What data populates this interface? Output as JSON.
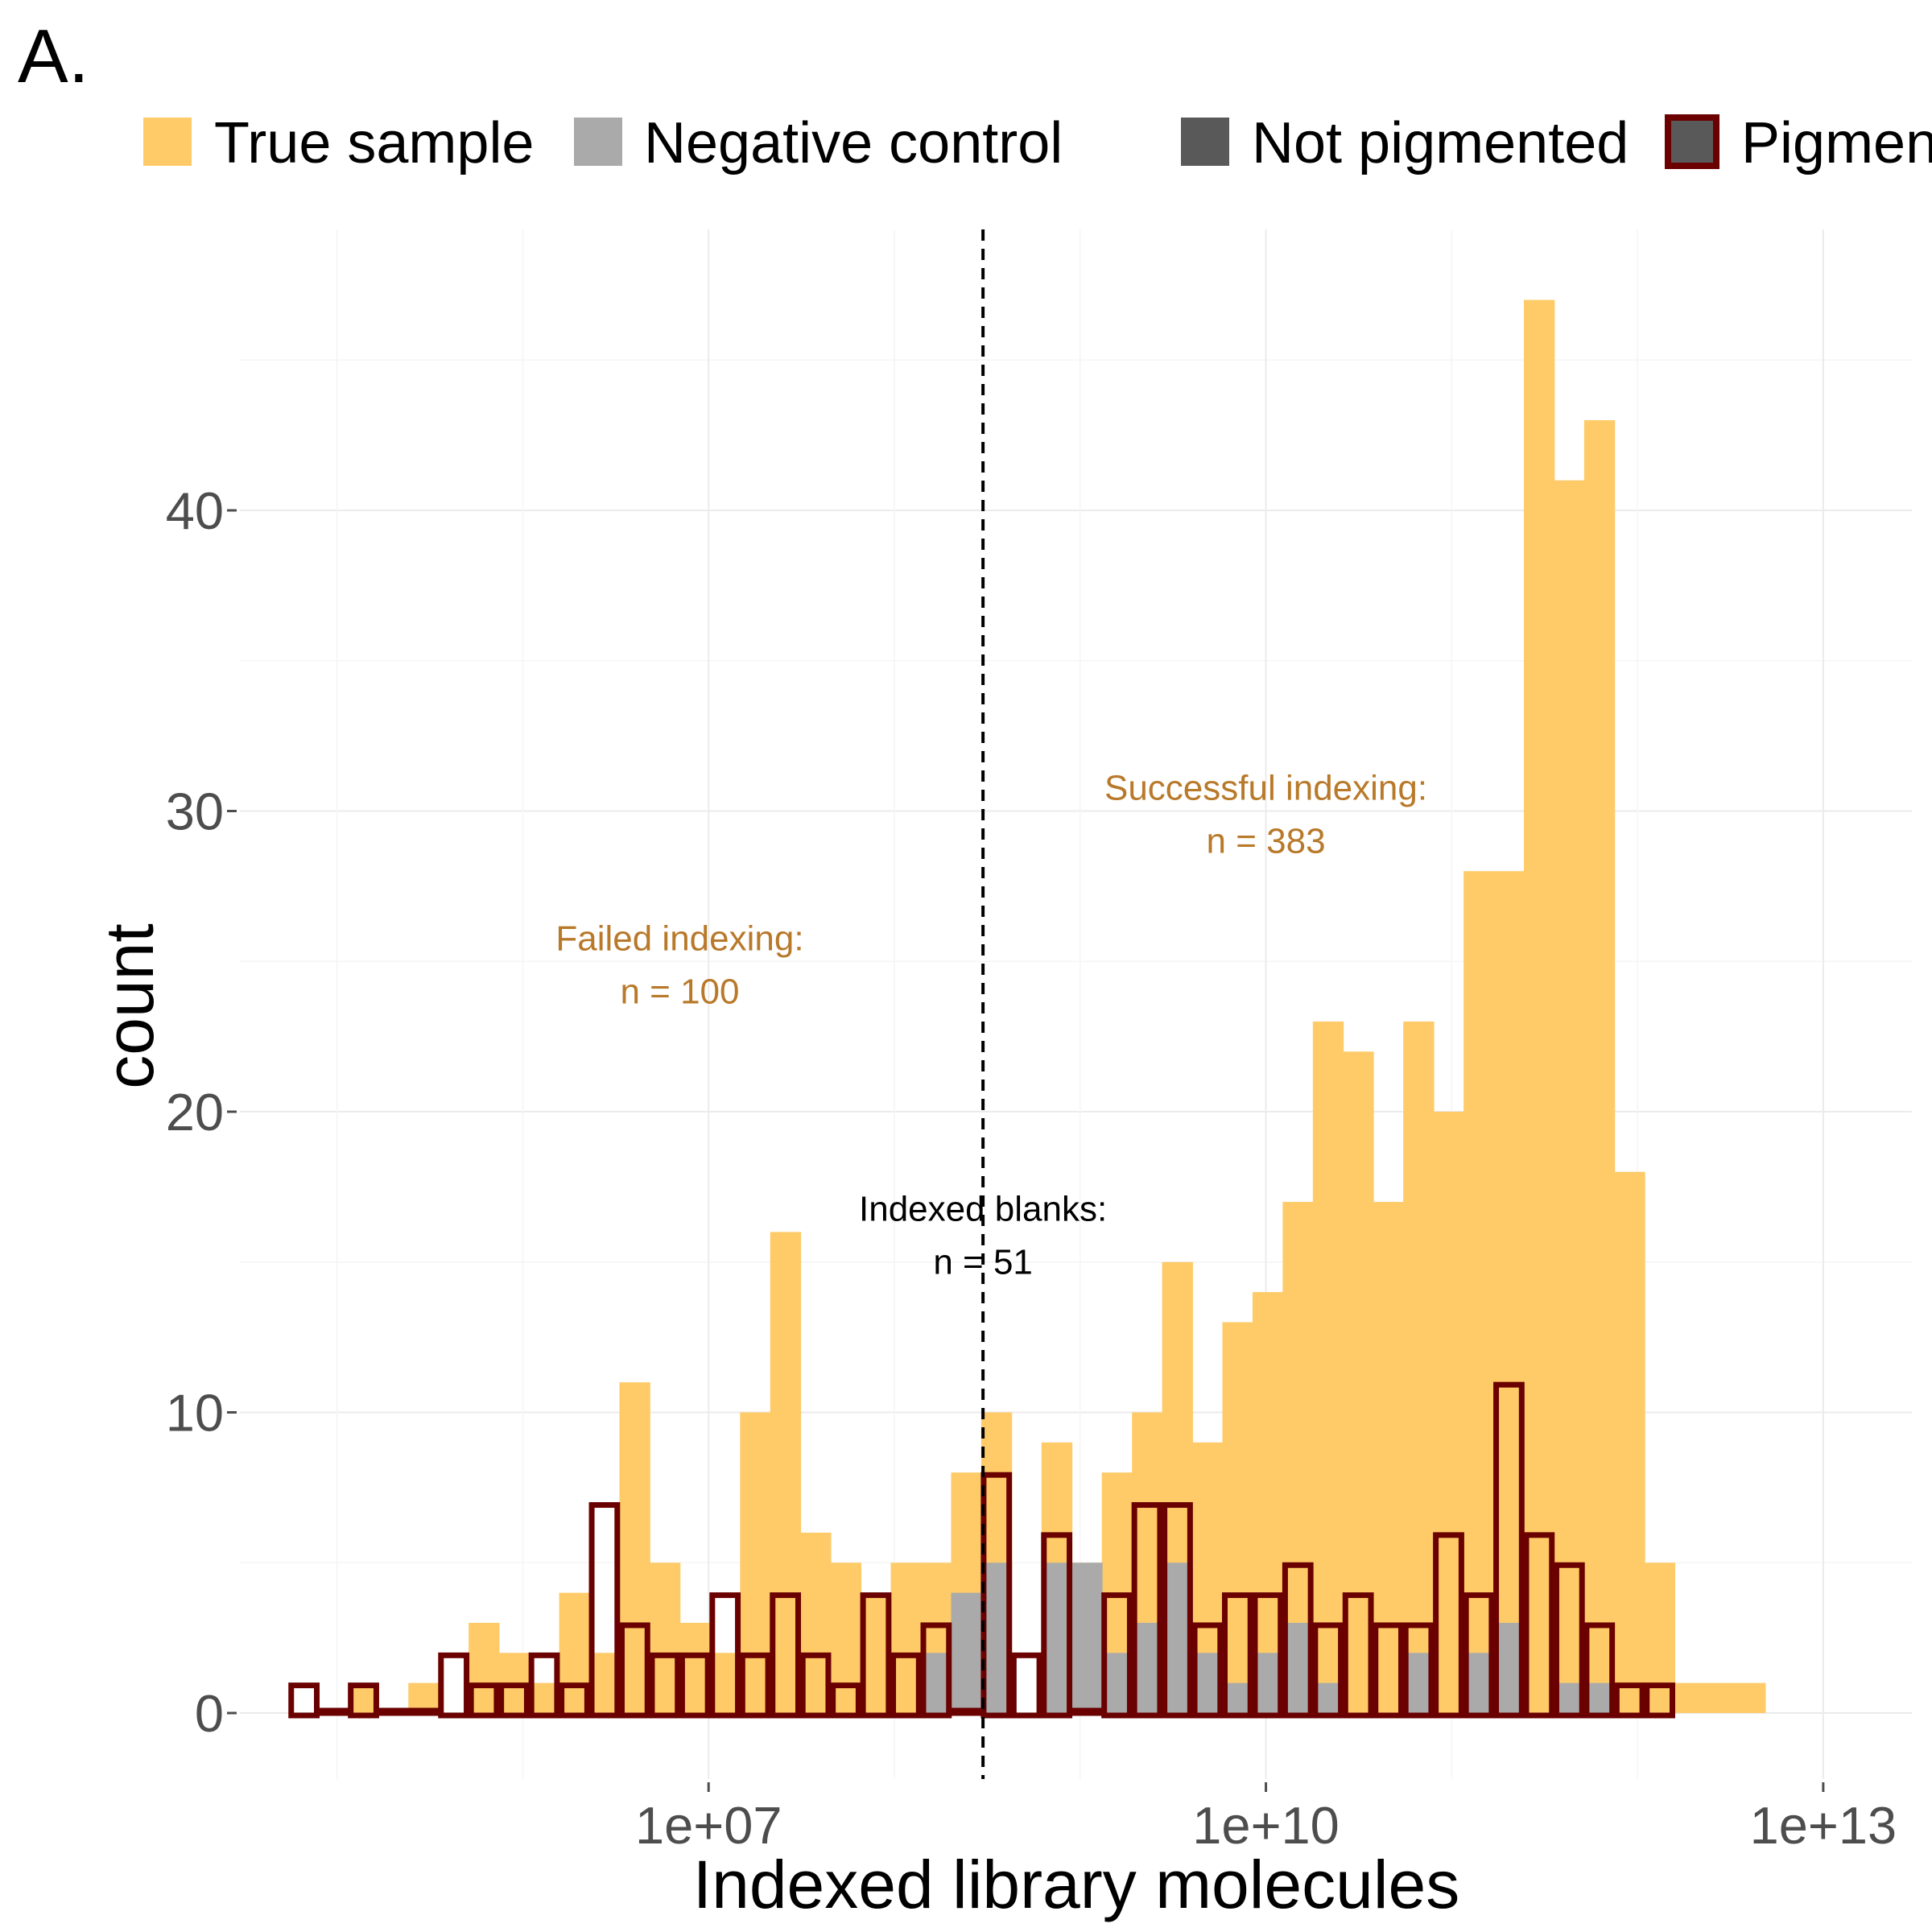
{
  "panel_label": "A.",
  "colors": {
    "true_sample": "#FECB68",
    "negative_control": "#AAAAAA",
    "not_pigmented": "#595959",
    "pigmented_outline": "#6A0000",
    "annotation": "#B8792A",
    "grid": "#EBEBEB",
    "axis_text": "#4D4D4D"
  },
  "legend": [
    {
      "label": "True sample",
      "color": "#FECB68",
      "outline": null
    },
    {
      "label": "Negative control",
      "color": "#AAAAAA",
      "outline": null
    },
    {
      "label": "Not pigmented",
      "color": "#595959",
      "outline": null
    },
    {
      "label": "Pigmented",
      "color": "#595959",
      "outline": "#6A0000"
    }
  ],
  "chart_data": {
    "type": "bar",
    "title": "",
    "xlabel": "Indexed library molecules",
    "ylabel": "count",
    "x_scale": "log10",
    "x_bin_width_log10": 0.1636,
    "xlim": [
      30000,
      30000000000000
    ],
    "ylim": [
      0,
      47
    ],
    "x_ticks": [
      {
        "value": 10000000,
        "label": "1e+07"
      },
      {
        "value": 10000000000,
        "label": "1e+10"
      },
      {
        "value": 10000000000000,
        "label": "1e+13"
      }
    ],
    "y_ticks": [
      0,
      10,
      20,
      30,
      40
    ],
    "grid": true,
    "legend_position": "top",
    "bin_lower_edges": [
      55000,
      80000,
      115000,
      167000,
      242000,
      352000,
      511000,
      743000,
      1080000,
      1569000,
      2280000,
      3313000,
      4814000,
      6995000,
      10160000,
      14770000,
      21460000,
      31180000,
      45310000,
      65830000,
      95660000,
      139000000,
      202000000,
      293500000,
      426400000,
      619600000,
      900300000,
      1308000000,
      1901000000,
      2762000000,
      4013000000,
      5831000000,
      8473000000,
      12310000000,
      17890000000,
      25990000000,
      37770000000,
      54880000000,
      79740000000,
      115900000000,
      168400000000,
      244600000000,
      355500000000,
      516500000000,
      750400000000,
      1090000000000,
      1584000000000,
      2302000000000,
      3345000000000,
      4861000000000,
      7063000000000,
      10260000000000
    ],
    "series": [
      {
        "name": "True sample",
        "values": [
          0,
          0,
          1,
          0,
          1,
          0,
          3,
          2,
          1,
          4,
          2,
          11,
          5,
          3,
          2,
          10,
          16,
          6,
          5,
          4,
          5,
          5,
          8,
          10,
          0,
          9,
          5,
          8,
          10,
          15,
          9,
          13,
          14,
          17,
          23,
          22,
          17,
          23,
          20,
          28,
          28,
          47,
          41,
          43,
          18,
          5,
          1,
          1,
          1,
          0,
          0,
          0
        ]
      },
      {
        "name": "Negative control",
        "values": [
          0,
          0,
          0,
          0,
          0,
          0,
          0,
          0,
          0,
          0,
          0,
          0,
          0,
          0,
          0,
          0,
          0,
          0,
          0,
          0,
          0,
          2,
          4,
          5,
          0,
          5,
          5,
          2,
          3,
          5,
          2,
          1,
          2,
          3,
          1,
          0,
          0,
          2,
          0,
          2,
          3,
          0,
          1,
          1,
          0,
          0,
          0,
          0,
          0,
          0,
          0,
          0
        ]
      },
      {
        "name": "Pigmented",
        "values": [
          1,
          0,
          1,
          0,
          0,
          2,
          1,
          1,
          2,
          1,
          7,
          3,
          2,
          2,
          4,
          2,
          4,
          2,
          1,
          4,
          2,
          3,
          0,
          8,
          2,
          6,
          0,
          4,
          7,
          7,
          3,
          4,
          4,
          5,
          3,
          4,
          3,
          3,
          6,
          4,
          11,
          6,
          5,
          3,
          1,
          1,
          0,
          0,
          0,
          0,
          0,
          0
        ]
      }
    ],
    "threshold_line": {
      "x": 300000000,
      "style": "dashed"
    },
    "annotations": [
      {
        "lines": [
          "Failed indexing:",
          "n = 100"
        ],
        "x": 7000000,
        "y": 25,
        "color": "#B8792A"
      },
      {
        "lines": [
          "Successful indexing:",
          "n = 383"
        ],
        "x": 10000000000,
        "y": 30,
        "color": "#B8792A"
      },
      {
        "lines": [
          "Indexed blanks:",
          "n = 51"
        ],
        "x": 300000000,
        "y": 16,
        "color": "#000000"
      }
    ]
  }
}
